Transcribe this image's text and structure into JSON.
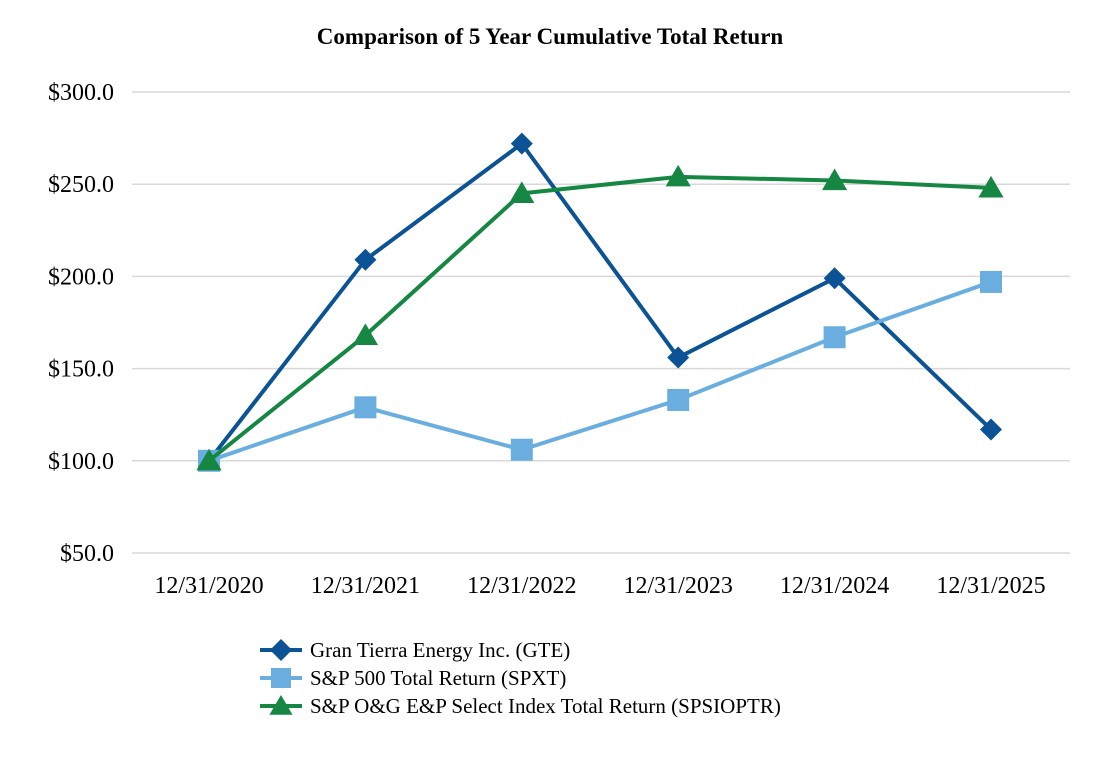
{
  "chart_data": {
    "type": "line",
    "title": "Comparison of 5 Year Cumulative Total Return",
    "xlabel": "",
    "ylabel": "",
    "categories": [
      "12/31/2020",
      "12/31/2021",
      "12/31/2022",
      "12/31/2023",
      "12/31/2024",
      "12/31/2025"
    ],
    "ylim": [
      50,
      300
    ],
    "yticks": [
      50,
      100,
      150,
      200,
      250,
      300
    ],
    "ytick_labels": [
      "$50.0",
      "$100.0",
      "$150.0",
      "$200.0",
      "$250.0",
      "$300.0"
    ],
    "grid": true,
    "legend_position": "bottom",
    "series": [
      {
        "name": "Gran Tierra Energy Inc. (GTE)",
        "marker": "diamond",
        "color": "#0b5394",
        "values": [
          100,
          209,
          272,
          156,
          199,
          117
        ]
      },
      {
        "name": "S&P 500 Total Return (SPXT)",
        "marker": "square",
        "color": "#6aaee0",
        "values": [
          100,
          129,
          106,
          133,
          167,
          197
        ]
      },
      {
        "name": "S&P O&G E&P Select Index Total Return (SPSIOPTR)",
        "marker": "triangle",
        "color": "#168743",
        "values": [
          100,
          168,
          245,
          254,
          252,
          248
        ]
      }
    ]
  }
}
